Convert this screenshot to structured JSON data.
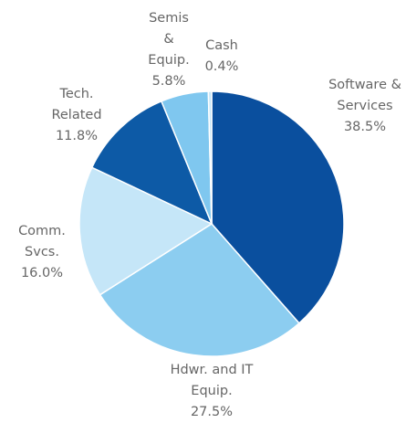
{
  "chart_data": {
    "type": "pie",
    "categories": [
      "Software & Services",
      "Hdwr. and IT Equip.",
      "Comm. Svcs.",
      "Tech. Related",
      "Semis & Equip.",
      "Cash"
    ],
    "values": [
      38.5,
      27.5,
      16.0,
      11.8,
      5.8,
      0.4
    ],
    "value_labels": [
      "38.5%",
      "27.5%",
      "16.0%",
      "11.8%",
      "5.8%",
      "0.4%"
    ],
    "colors": [
      "#0a4f9e",
      "#8ccdf0",
      "#c5e6f8",
      "#0d5aa6",
      "#7fc7ef",
      "#c5e6f8"
    ]
  }
}
